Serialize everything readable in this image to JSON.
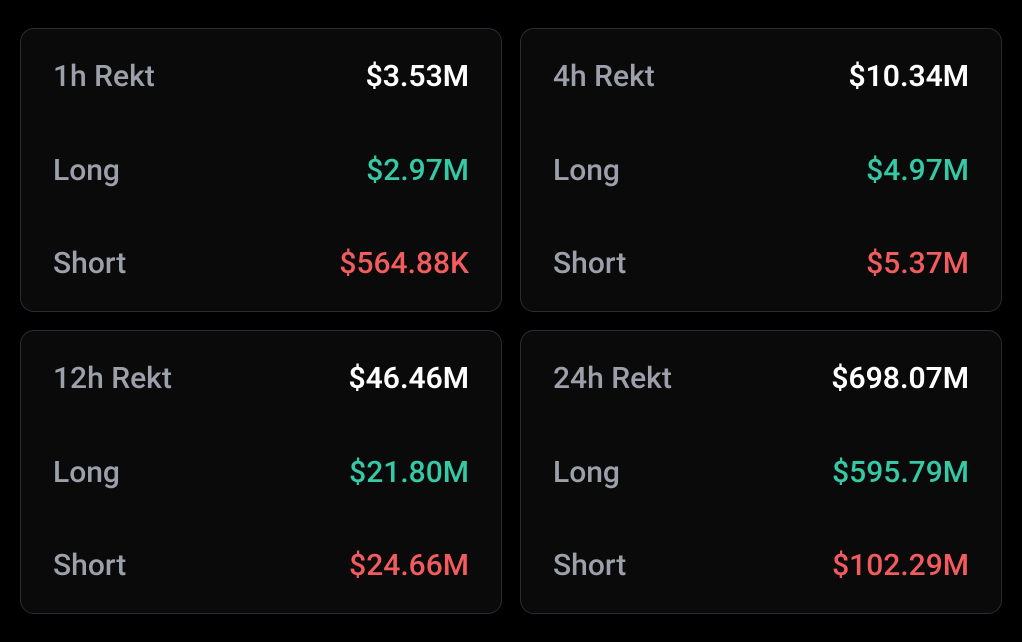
{
  "colors": {
    "background": "#000000",
    "card_background": "#0a0a0b",
    "card_border": "#2a2c33",
    "label_text": "#9ba0aa",
    "total_text": "#ffffff",
    "long_text": "#35c9a5",
    "short_text": "#f25c5e"
  },
  "typography": {
    "font_family": "-apple-system, sans-serif",
    "label_fontsize": 30,
    "value_fontsize": 30,
    "label_weight": 500,
    "total_weight": 600
  },
  "layout": {
    "grid_columns": 2,
    "grid_rows": 2,
    "card_border_radius": 14,
    "gap": 18
  },
  "labels": {
    "long": "Long",
    "short": "Short"
  },
  "cards": [
    {
      "title": "1h Rekt",
      "total": "$3.53M",
      "long": "$2.97M",
      "short": "$564.88K"
    },
    {
      "title": "4h Rekt",
      "total": "$10.34M",
      "long": "$4.97M",
      "short": "$5.37M"
    },
    {
      "title": "12h Rekt",
      "total": "$46.46M",
      "long": "$21.80M",
      "short": "$24.66M"
    },
    {
      "title": "24h Rekt",
      "total": "$698.07M",
      "long": "$595.79M",
      "short": "$102.29M"
    }
  ]
}
